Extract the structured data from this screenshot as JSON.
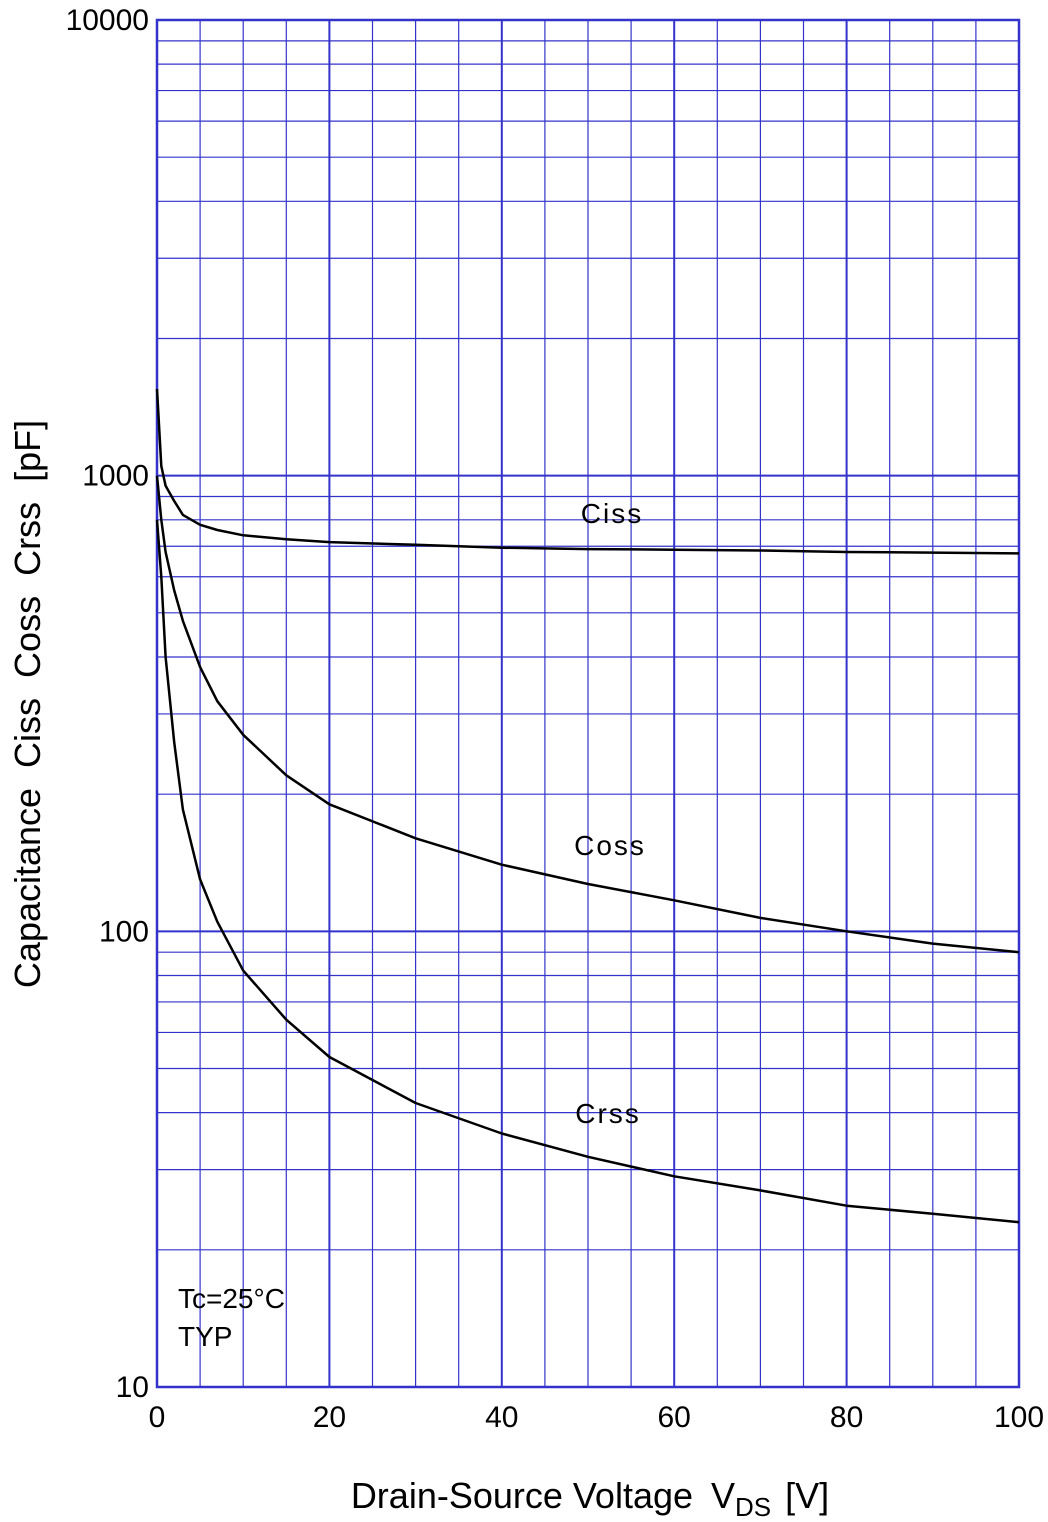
{
  "chart_data": {
    "type": "line",
    "xlabel": "Drain-Source Voltage",
    "xlabel_symbol": "V",
    "xlabel_subscript": "DS",
    "xlabel_unit": "[V]",
    "ylabel": "Capacitance  Ciss  Coss  Crss  [pF]",
    "xlim": [
      0,
      100
    ],
    "ylim": [
      10,
      10000
    ],
    "yscale": "log",
    "grid": true,
    "x_ticks": [
      "0",
      "20",
      "40",
      "60",
      "80",
      "100"
    ],
    "y_ticks": [
      "10",
      "100",
      "1000",
      "10000"
    ],
    "annotations": [
      "Tc=25°C",
      "TYP"
    ],
    "series": [
      {
        "name": "Ciss",
        "x": [
          0,
          0.5,
          1,
          2,
          3,
          5,
          7,
          10,
          15,
          20,
          30,
          40,
          50,
          60,
          70,
          80,
          90,
          100
        ],
        "y": [
          1550,
          1050,
          950,
          880,
          820,
          780,
          760,
          740,
          725,
          715,
          705,
          695,
          690,
          688,
          685,
          680,
          678,
          675
        ]
      },
      {
        "name": "Coss",
        "x": [
          0,
          0.5,
          1,
          2,
          3,
          5,
          7,
          10,
          15,
          20,
          30,
          40,
          50,
          60,
          70,
          80,
          90,
          100
        ],
        "y": [
          1000,
          800,
          680,
          560,
          480,
          380,
          320,
          270,
          220,
          190,
          160,
          140,
          127,
          117,
          107,
          100,
          94,
          90
        ]
      },
      {
        "name": "Crss",
        "x": [
          0,
          0.5,
          1,
          2,
          3,
          5,
          7,
          10,
          15,
          20,
          30,
          40,
          50,
          60,
          70,
          80,
          90,
          100
        ],
        "y": [
          800,
          600,
          400,
          260,
          185,
          130,
          105,
          82,
          64,
          53,
          42,
          36,
          32,
          29,
          27,
          25,
          24,
          23
        ]
      }
    ],
    "colors": {
      "grid": "#3333cc",
      "curve": "#000000"
    }
  }
}
